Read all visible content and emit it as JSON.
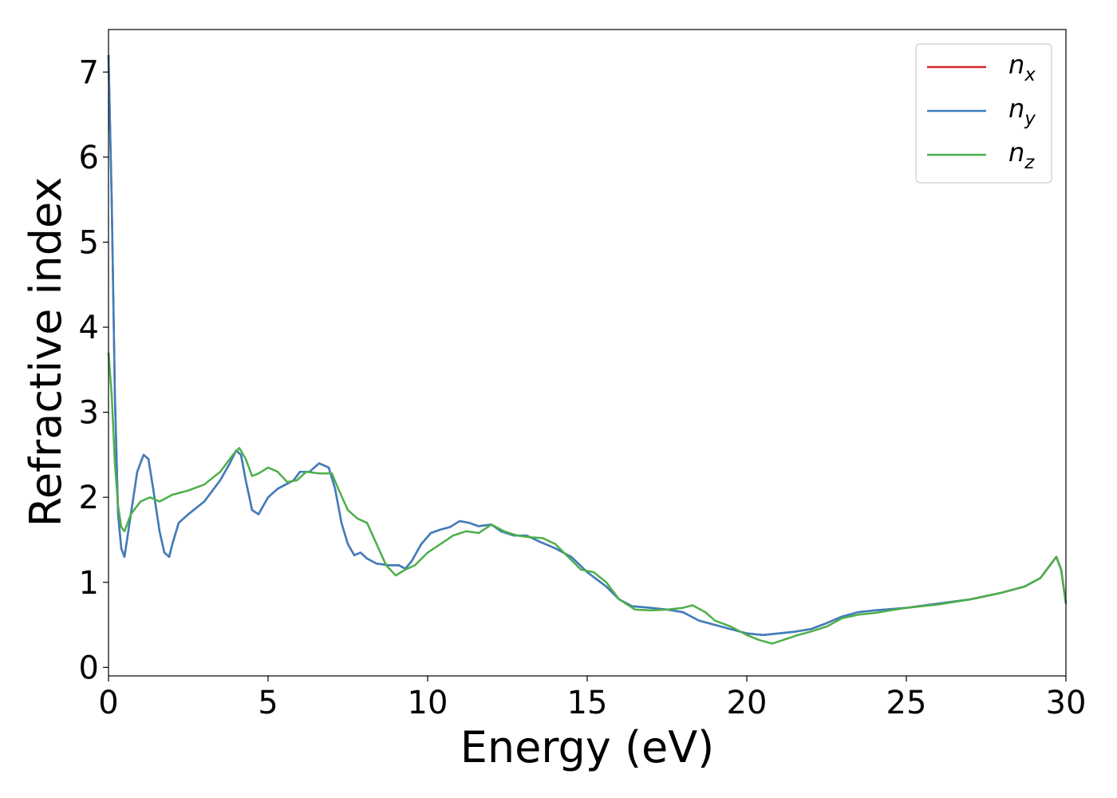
{
  "chart_data": {
    "type": "line",
    "title": "",
    "xlabel": "Energy (eV)",
    "ylabel": "Refractive index",
    "xlim": [
      0,
      30
    ],
    "ylim": [
      -0.1,
      7.5
    ],
    "xticks": [
      0,
      5,
      10,
      15,
      20,
      25,
      30
    ],
    "yticks": [
      0,
      1,
      2,
      3,
      4,
      5,
      6,
      7
    ],
    "grid": false,
    "legend_position": "top-right",
    "series": [
      {
        "name": "n_x",
        "label_main": "n",
        "label_sub": "x",
        "color": "#d62728",
        "x": [
          0,
          0.1,
          0.2,
          0.3,
          0.4,
          0.5,
          0.7,
          0.9,
          1.1,
          1.25,
          1.4,
          1.6,
          1.75,
          1.9,
          2.0,
          2.2,
          2.5,
          3.0,
          3.5,
          3.8,
          4.0,
          4.15,
          4.3,
          4.5,
          4.7,
          4.85,
          5.0,
          5.3,
          5.8,
          6.0,
          6.3,
          6.6,
          6.9,
          7.1,
          7.3,
          7.5,
          7.7,
          7.9,
          8.1,
          8.4,
          8.8,
          9.1,
          9.3,
          9.5,
          9.8,
          10.1,
          10.4,
          10.7,
          11.0,
          11.3,
          11.6,
          12.0,
          12.3,
          12.7,
          13.1,
          13.5,
          14.0,
          14.5,
          15.0,
          15.6,
          16.0,
          16.4,
          17.0,
          17.5,
          18.0,
          18.5,
          19.0,
          19.5,
          20.0,
          20.5,
          21.0,
          21.5,
          22.0,
          22.5,
          23.0,
          23.5,
          24.0,
          25.0,
          26.0,
          27.0,
          28.0,
          28.7,
          29.2,
          29.5,
          29.7,
          29.85,
          30.0
        ],
        "y": [
          7.2,
          5.5,
          3.2,
          1.8,
          1.4,
          1.3,
          1.8,
          2.3,
          2.5,
          2.45,
          2.1,
          1.6,
          1.35,
          1.3,
          1.45,
          1.7,
          1.8,
          1.95,
          2.2,
          2.4,
          2.55,
          2.5,
          2.2,
          1.85,
          1.8,
          1.9,
          2.0,
          2.1,
          2.2,
          2.3,
          2.3,
          2.4,
          2.35,
          2.1,
          1.7,
          1.45,
          1.32,
          1.35,
          1.28,
          1.22,
          1.2,
          1.2,
          1.16,
          1.25,
          1.45,
          1.58,
          1.62,
          1.65,
          1.72,
          1.7,
          1.66,
          1.68,
          1.6,
          1.55,
          1.55,
          1.48,
          1.4,
          1.3,
          1.12,
          0.95,
          0.8,
          0.72,
          0.7,
          0.68,
          0.65,
          0.55,
          0.5,
          0.45,
          0.4,
          0.38,
          0.4,
          0.42,
          0.45,
          0.52,
          0.6,
          0.65,
          0.67,
          0.7,
          0.75,
          0.8,
          0.88,
          0.95,
          1.05,
          1.2,
          1.3,
          1.15,
          0.75
        ]
      },
      {
        "name": "n_y",
        "label_main": "n",
        "label_sub": "y",
        "color": "#3a7fbf",
        "x": [
          0,
          0.1,
          0.2,
          0.3,
          0.4,
          0.5,
          0.7,
          0.9,
          1.1,
          1.25,
          1.4,
          1.6,
          1.75,
          1.9,
          2.0,
          2.2,
          2.5,
          3.0,
          3.5,
          3.8,
          4.0,
          4.15,
          4.3,
          4.5,
          4.7,
          4.85,
          5.0,
          5.3,
          5.8,
          6.0,
          6.3,
          6.6,
          6.9,
          7.1,
          7.3,
          7.5,
          7.7,
          7.9,
          8.1,
          8.4,
          8.8,
          9.1,
          9.3,
          9.5,
          9.8,
          10.1,
          10.4,
          10.7,
          11.0,
          11.3,
          11.6,
          12.0,
          12.3,
          12.7,
          13.1,
          13.5,
          14.0,
          14.5,
          15.0,
          15.6,
          16.0,
          16.4,
          17.0,
          17.5,
          18.0,
          18.5,
          19.0,
          19.5,
          20.0,
          20.5,
          21.0,
          21.5,
          22.0,
          22.5,
          23.0,
          23.5,
          24.0,
          25.0,
          26.0,
          27.0,
          28.0,
          28.7,
          29.2,
          29.5,
          29.7,
          29.85,
          30.0
        ],
        "y": [
          7.2,
          5.5,
          3.2,
          1.8,
          1.4,
          1.3,
          1.8,
          2.3,
          2.5,
          2.45,
          2.1,
          1.6,
          1.35,
          1.3,
          1.45,
          1.7,
          1.8,
          1.95,
          2.2,
          2.4,
          2.55,
          2.5,
          2.2,
          1.85,
          1.8,
          1.9,
          2.0,
          2.1,
          2.2,
          2.3,
          2.3,
          2.4,
          2.35,
          2.1,
          1.7,
          1.45,
          1.32,
          1.35,
          1.28,
          1.22,
          1.2,
          1.2,
          1.16,
          1.25,
          1.45,
          1.58,
          1.62,
          1.65,
          1.72,
          1.7,
          1.66,
          1.68,
          1.6,
          1.55,
          1.55,
          1.48,
          1.4,
          1.3,
          1.12,
          0.95,
          0.8,
          0.72,
          0.7,
          0.68,
          0.65,
          0.55,
          0.5,
          0.45,
          0.4,
          0.38,
          0.4,
          0.42,
          0.45,
          0.52,
          0.6,
          0.65,
          0.67,
          0.7,
          0.75,
          0.8,
          0.88,
          0.95,
          1.05,
          1.2,
          1.3,
          1.15,
          0.75
        ]
      },
      {
        "name": "n_z",
        "label_main": "n",
        "label_sub": "z",
        "color": "#4daf4a",
        "x": [
          0,
          0.1,
          0.2,
          0.3,
          0.4,
          0.5,
          0.7,
          1.0,
          1.3,
          1.6,
          2.0,
          2.5,
          3.0,
          3.5,
          3.9,
          4.1,
          4.3,
          4.5,
          4.7,
          5.0,
          5.3,
          5.6,
          5.9,
          6.2,
          6.6,
          7.0,
          7.2,
          7.5,
          7.8,
          8.1,
          8.4,
          8.7,
          9.0,
          9.3,
          9.6,
          10.0,
          10.4,
          10.8,
          11.2,
          11.6,
          12.0,
          12.4,
          12.8,
          13.2,
          13.6,
          14.0,
          14.4,
          14.8,
          15.2,
          15.6,
          16.0,
          16.5,
          17.0,
          17.5,
          18.0,
          18.3,
          18.7,
          19.0,
          19.5,
          20.0,
          20.4,
          20.8,
          21.2,
          21.6,
          22.0,
          22.5,
          23.0,
          23.5,
          24.0,
          25.0,
          26.0,
          27.0,
          28.0,
          28.7,
          29.2,
          29.5,
          29.7,
          29.85,
          30.0
        ],
        "y": [
          3.7,
          3.2,
          2.4,
          1.9,
          1.65,
          1.6,
          1.8,
          1.95,
          2.0,
          1.95,
          2.03,
          2.08,
          2.15,
          2.3,
          2.5,
          2.58,
          2.45,
          2.25,
          2.28,
          2.35,
          2.3,
          2.18,
          2.2,
          2.3,
          2.28,
          2.28,
          2.1,
          1.85,
          1.75,
          1.7,
          1.45,
          1.2,
          1.08,
          1.15,
          1.2,
          1.35,
          1.45,
          1.55,
          1.6,
          1.58,
          1.68,
          1.6,
          1.55,
          1.53,
          1.52,
          1.45,
          1.3,
          1.15,
          1.12,
          1.0,
          0.8,
          0.68,
          0.67,
          0.68,
          0.7,
          0.73,
          0.65,
          0.55,
          0.48,
          0.38,
          0.32,
          0.28,
          0.33,
          0.38,
          0.42,
          0.48,
          0.58,
          0.62,
          0.64,
          0.7,
          0.74,
          0.8,
          0.88,
          0.95,
          1.05,
          1.2,
          1.3,
          1.15,
          0.75
        ]
      }
    ]
  }
}
